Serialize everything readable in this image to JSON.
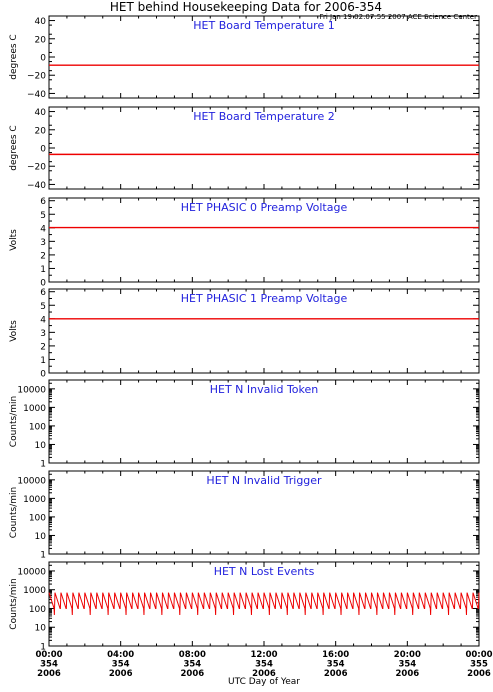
{
  "header": {
    "title": "HET behind Housekeeping Data for 2006-354",
    "subtitle": "Fri Jan 19 02:07:55 2007 ACE Science Center"
  },
  "xaxis": {
    "label": "UTC Day of Year",
    "ticks": [
      [
        "00:00",
        "354",
        "2006"
      ],
      [
        "04:00",
        "354",
        "2006"
      ],
      [
        "08:00",
        "354",
        "2006"
      ],
      [
        "12:00",
        "354",
        "2006"
      ],
      [
        "16:00",
        "354",
        "2006"
      ],
      [
        "20:00",
        "354",
        "2006"
      ],
      [
        "00:00",
        "355",
        "2006"
      ]
    ]
  },
  "colors": {
    "title": "#2222dd",
    "data": "#ee0000",
    "axis": "#000000"
  },
  "chart_data": [
    {
      "type": "line",
      "title": "HET Board Temperature 1",
      "ylabel": "degrees C",
      "scale": "linear",
      "ylim": [
        -45,
        45
      ],
      "yticks": [
        "40",
        "20",
        "0",
        "−20",
        "−40"
      ],
      "ytick_values": [
        40,
        20,
        0,
        -20,
        -40
      ],
      "x_range_hours": [
        0,
        24
      ],
      "series": [
        {
          "hours": [
            0,
            24
          ],
          "values": [
            -9,
            -9
          ]
        }
      ]
    },
    {
      "type": "line",
      "title": "HET Board Temperature 2",
      "ylabel": "degrees C",
      "scale": "linear",
      "ylim": [
        -45,
        45
      ],
      "yticks": [
        "40",
        "20",
        "0",
        "−20",
        "−40"
      ],
      "ytick_values": [
        40,
        20,
        0,
        -20,
        -40
      ],
      "x_range_hours": [
        0,
        24
      ],
      "series": [
        {
          "hours": [
            0,
            24
          ],
          "values": [
            -7,
            -7
          ]
        }
      ]
    },
    {
      "type": "line",
      "title": "HET PHASIC 0 Preamp Voltage",
      "ylabel": "Volts",
      "scale": "linear",
      "ylim": [
        0,
        6.2
      ],
      "yticks": [
        "6",
        "5",
        "4",
        "3",
        "2",
        "1",
        "0"
      ],
      "ytick_values": [
        6,
        5,
        4,
        3,
        2,
        1,
        0
      ],
      "x_range_hours": [
        0,
        24
      ],
      "series": [
        {
          "hours": [
            0,
            24
          ],
          "values": [
            4.02,
            4.02
          ]
        }
      ]
    },
    {
      "type": "line",
      "title": "HET PHASIC 1 Preamp Voltage",
      "ylabel": "Volts",
      "scale": "linear",
      "ylim": [
        0,
        6.2
      ],
      "yticks": [
        "6",
        "5",
        "4",
        "3",
        "2",
        "1",
        "0"
      ],
      "ytick_values": [
        6,
        5,
        4,
        3,
        2,
        1,
        0
      ],
      "x_range_hours": [
        0,
        24
      ],
      "series": [
        {
          "hours": [
            0,
            24
          ],
          "values": [
            4.0,
            4.0
          ]
        }
      ]
    },
    {
      "type": "line",
      "title": "HET N Invalid Token",
      "ylabel": "Counts/min",
      "scale": "log",
      "ylim": [
        1,
        30000
      ],
      "yticks": [
        "10000",
        "1000",
        "100",
        "10",
        "1"
      ],
      "ytick_values": [
        10000,
        1000,
        100,
        10,
        1
      ],
      "x_range_hours": [
        0,
        24
      ],
      "series": []
    },
    {
      "type": "line",
      "title": "HET N Invalid Trigger",
      "ylabel": "Counts/min",
      "scale": "log",
      "ylim": [
        1,
        30000
      ],
      "yticks": [
        "10000",
        "1000",
        "100",
        "10",
        "1"
      ],
      "ytick_values": [
        10000,
        1000,
        100,
        10,
        1
      ],
      "x_range_hours": [
        0,
        24
      ],
      "series": []
    },
    {
      "type": "line",
      "title": "HET N Lost Events",
      "ylabel": "Counts/min",
      "scale": "log",
      "ylim": [
        1,
        30000
      ],
      "yticks": [
        "10000",
        "1000",
        "100",
        "10",
        "1"
      ],
      "ytick_values": [
        10000,
        1000,
        100,
        10,
        1
      ],
      "x_range_hours": [
        0,
        24
      ],
      "series": [
        {
          "pattern": "sawtooth",
          "low": 100,
          "high": 700,
          "dip": 45,
          "periods": 72
        }
      ]
    }
  ]
}
